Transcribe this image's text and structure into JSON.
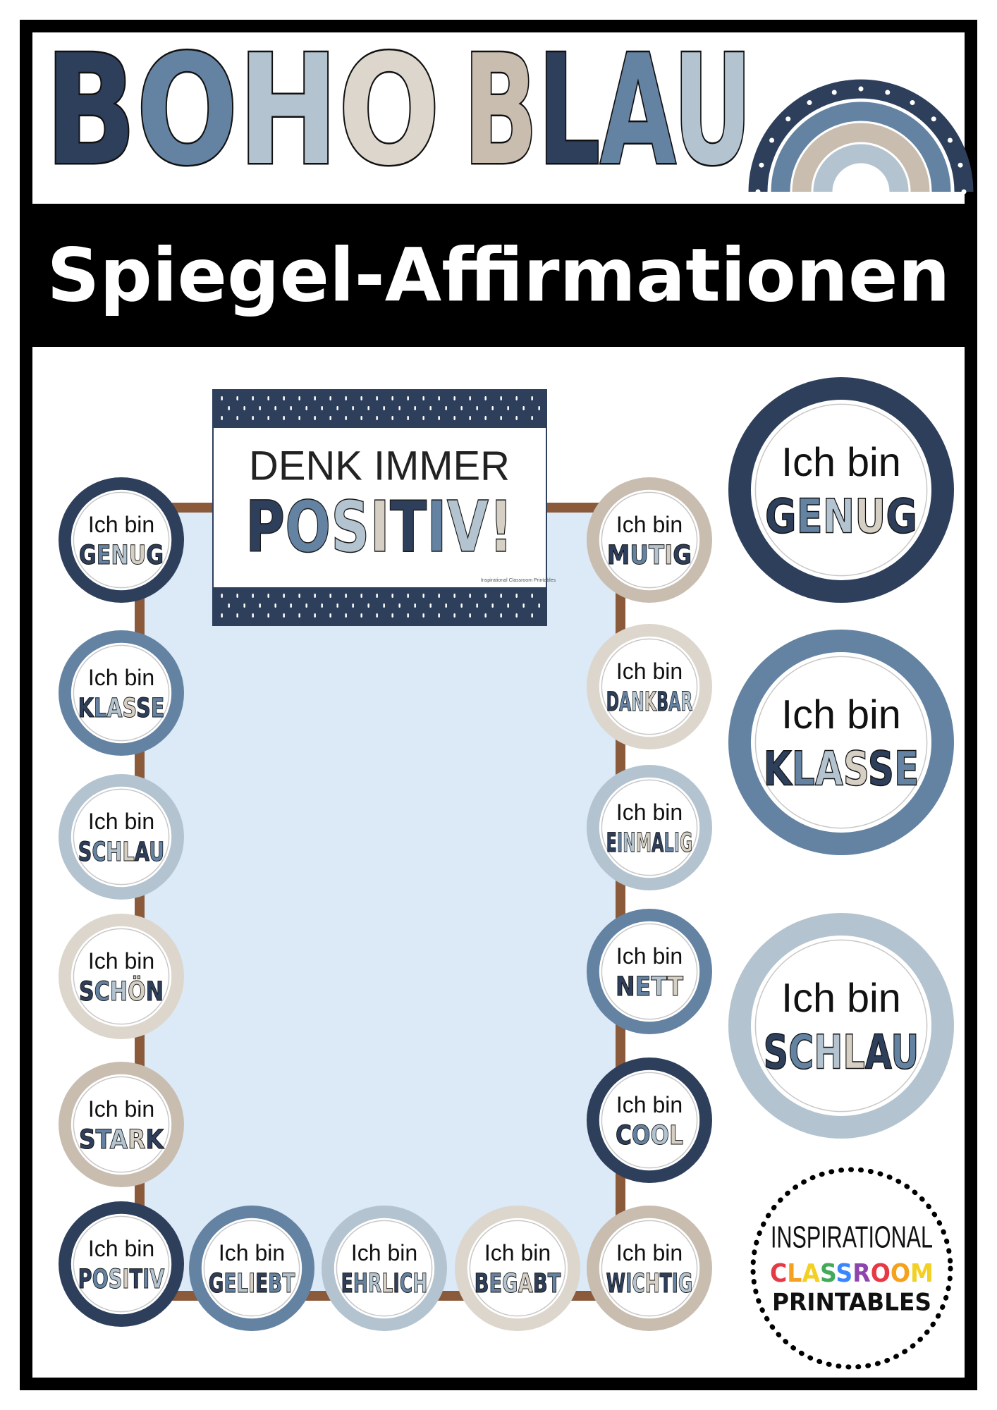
{
  "header": {
    "title_words": [
      "BOHO",
      "BLAU"
    ],
    "subtitle": "Spiegel-Affirmationen"
  },
  "poster": {
    "line1": "DENK IMMER",
    "line2": "POSITIV!",
    "credit": "Inspirational Classroom Printables"
  },
  "small_circles": [
    {
      "prefix": "Ich bin",
      "word": "GENUG"
    },
    {
      "prefix": "Ich bin",
      "word": "KLASSE"
    },
    {
      "prefix": "Ich bin",
      "word": "SCHLAU"
    },
    {
      "prefix": "Ich bin",
      "word": "SCHÖN"
    },
    {
      "prefix": "Ich bin",
      "word": "STARK"
    },
    {
      "prefix": "Ich bin",
      "word": "POSITIV"
    },
    {
      "prefix": "Ich bin",
      "word": "GELIEBT"
    },
    {
      "prefix": "Ich bin",
      "word": "EHRLICH"
    },
    {
      "prefix": "Ich bin",
      "word": "BEGABT"
    },
    {
      "prefix": "Ich bin",
      "word": "WICHTIG"
    },
    {
      "prefix": "Ich bin",
      "word": "COOL"
    },
    {
      "prefix": "Ich bin",
      "word": "NETT"
    },
    {
      "prefix": "Ich bin",
      "word": "EINMALIG"
    },
    {
      "prefix": "Ich bin",
      "word": "DANKBAR"
    },
    {
      "prefix": "Ich bin",
      "word": "MUTIG"
    }
  ],
  "large_circles": [
    {
      "prefix": "Ich bin",
      "word": "GENUG"
    },
    {
      "prefix": "Ich bin",
      "word": "KLASSE"
    },
    {
      "prefix": "Ich bin",
      "word": "SCHLAU"
    }
  ],
  "logo": {
    "line1": "INSPIRATIONAL",
    "line2": "CLASSROOM",
    "line3": "PRINTABLES"
  }
}
